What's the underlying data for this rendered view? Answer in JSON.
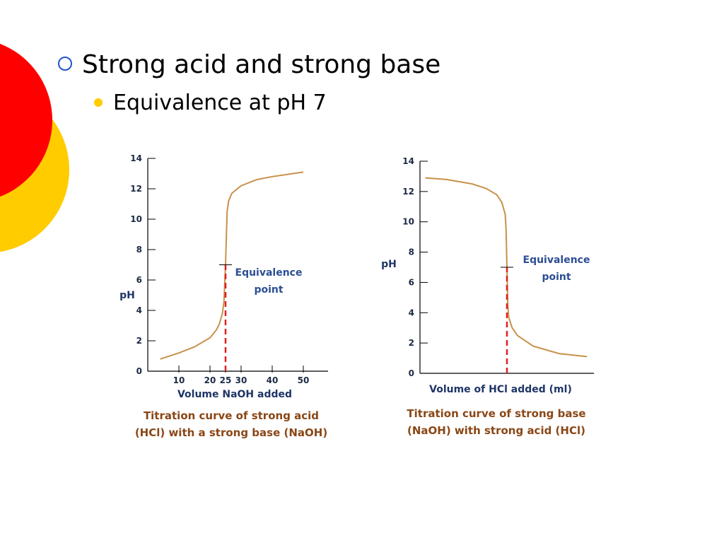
{
  "slide": {
    "bullets": [
      "Strong acid and strong base",
      "Equivalence at pH 7"
    ]
  },
  "chart_data": [
    {
      "type": "line",
      "color": "#c8914a",
      "y_label": "pH",
      "x_label": "Volume NaOH added",
      "annotation": [
        "Equivalence",
        "point"
      ],
      "caption": [
        "Titration curve of strong acid",
        "(HCl) with a strong base (NaOH)"
      ],
      "x": [
        4,
        10,
        15,
        20,
        22,
        23,
        24,
        24.5,
        25,
        25.5,
        26,
        27,
        30,
        35,
        40,
        50
      ],
      "series": [
        {
          "color": "#c8914a",
          "values": [
            0.8,
            1.2,
            1.6,
            2.2,
            2.7,
            3.1,
            3.8,
            4.6,
            7,
            10.5,
            11.2,
            11.7,
            12.2,
            12.6,
            12.8,
            13.1
          ]
        }
      ],
      "xlim": [
        0,
        57.5
      ],
      "xticks": [
        10,
        20,
        25,
        30,
        40,
        50
      ],
      "ylim": [
        0,
        14
      ],
      "yticks": [
        0,
        2,
        4,
        6,
        8,
        10,
        12,
        14
      ],
      "equivalence": {
        "x": 25,
        "y": 7
      }
    },
    {
      "type": "line",
      "color": "#c8914a",
      "y_label": "pH",
      "x_label": "Volume of HCl added (ml)",
      "annotation": [
        "Equivalence",
        "point"
      ],
      "caption": [
        "Titration curve of strong base",
        "(NaOH) with strong acid (HCl)"
      ],
      "x": [
        3,
        15,
        30,
        38,
        44,
        47,
        49,
        49.5,
        50,
        50.5,
        51,
        53,
        56,
        65,
        80,
        96
      ],
      "series": [
        {
          "color": "#c8914a",
          "values": [
            12.9,
            12.8,
            12.5,
            12.2,
            11.8,
            11.3,
            10.5,
            9.5,
            7,
            4.5,
            3.7,
            3.0,
            2.5,
            1.8,
            1.3,
            1.1
          ]
        }
      ],
      "xlim": [
        0,
        100
      ],
      "ylim": [
        0,
        14
      ],
      "yticks": [
        0,
        2,
        4,
        6,
        8,
        10,
        12,
        14
      ],
      "equivalence": {
        "x": 50,
        "y": 7
      }
    }
  ]
}
